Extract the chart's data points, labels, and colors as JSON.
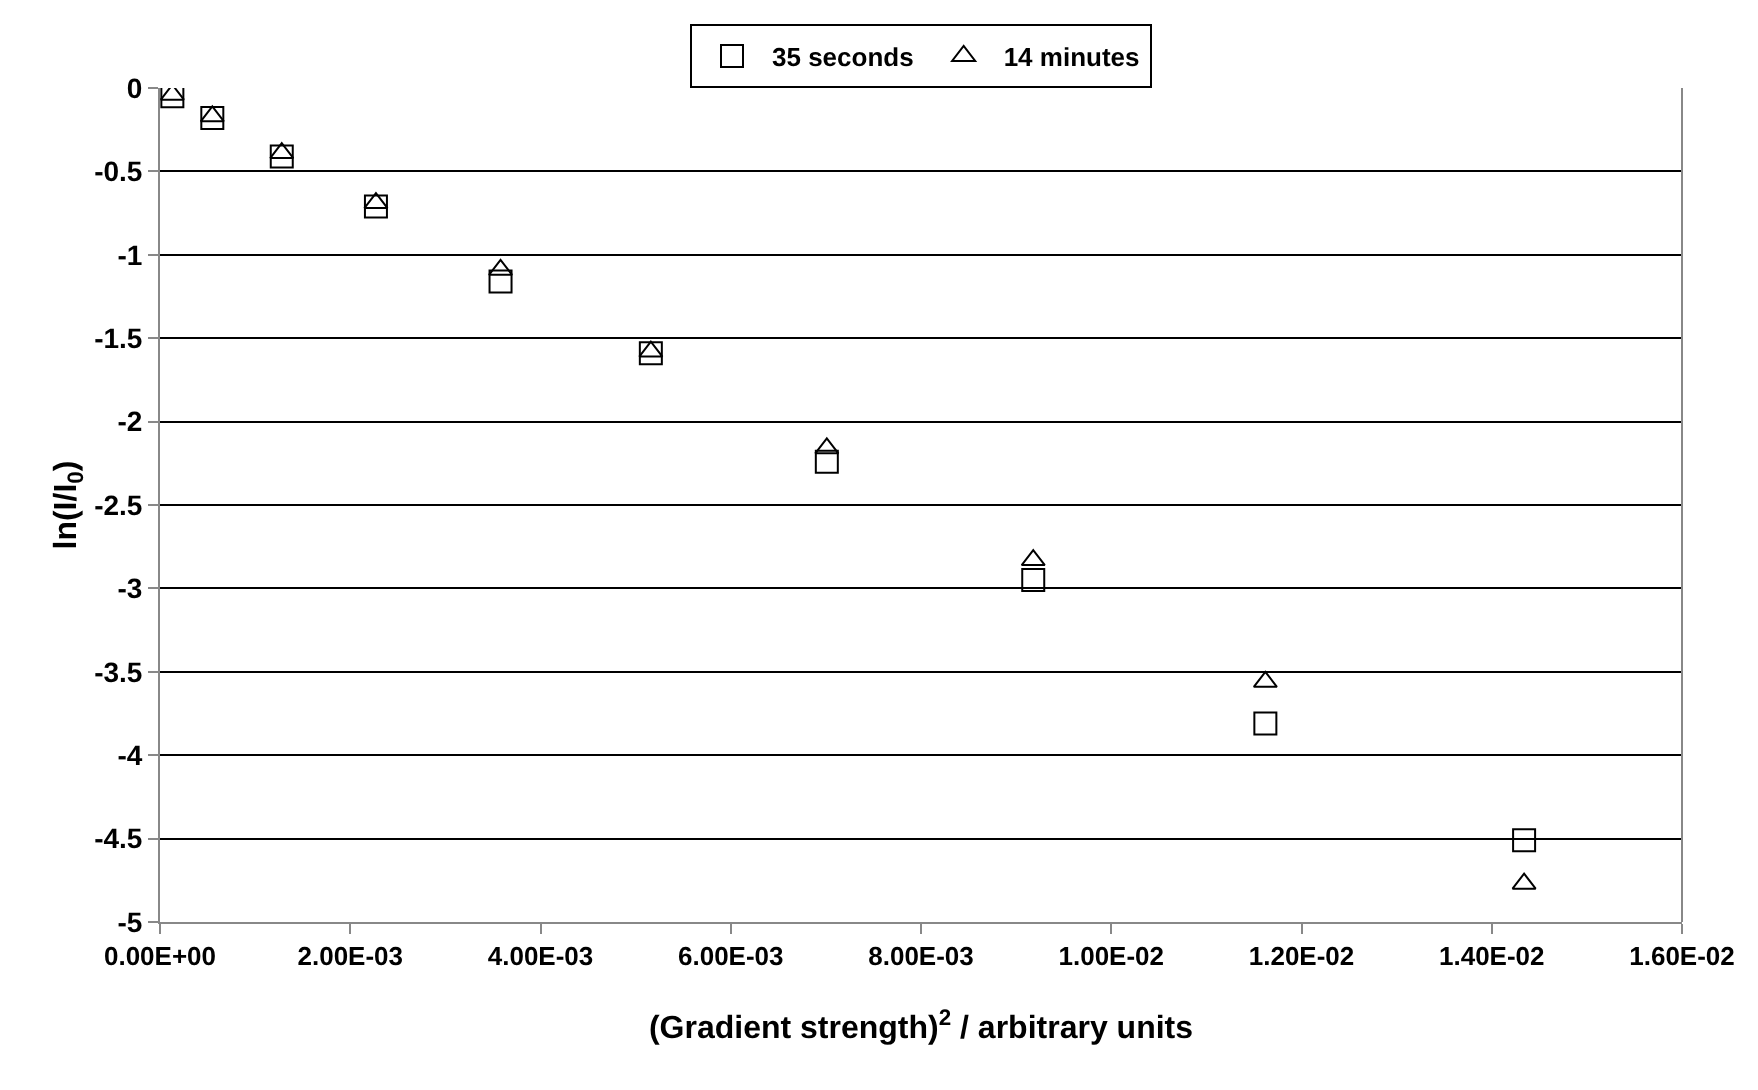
{
  "chart_data": {
    "type": "scatter",
    "xlabel": "(Gradient strength)$^{2}$ / arbitrary units",
    "ylabel": "ln(I/I$_{0}$)",
    "x": [
      0.00013,
      0.00055,
      0.00128,
      0.00227,
      0.00358,
      0.00516,
      0.00701,
      0.00918,
      0.01162,
      0.01434
    ],
    "series": [
      {
        "name": "35 seconds",
        "color": "#000000",
        "marker": "square",
        "values": [
          -0.05,
          -0.18,
          -0.41,
          -0.71,
          -1.16,
          -1.59,
          -2.24,
          -2.95,
          -3.81,
          -4.51
        ]
      },
      {
        "name": "14 minutes",
        "color": "#000000",
        "marker": "triangle",
        "values": [
          -0.04,
          -0.17,
          -0.39,
          -0.69,
          -1.09,
          -1.58,
          -2.16,
          -2.83,
          -3.56,
          -4.77
        ]
      }
    ],
    "xlim": [
      0,
      0.016
    ],
    "xticks": [
      {
        "value": 0,
        "label": "0.00E+00"
      },
      {
        "value": 0.002,
        "label": "2.00E-03"
      },
      {
        "value": 0.004,
        "label": "4.00E-03"
      },
      {
        "value": 0.006,
        "label": "6.00E-03"
      },
      {
        "value": 0.008,
        "label": "8.00E-03"
      },
      {
        "value": 0.01,
        "label": "1.00E-02"
      },
      {
        "value": 0.012,
        "label": "1.20E-02"
      },
      {
        "value": 0.014,
        "label": "1.40E-02"
      },
      {
        "value": 0.016,
        "label": "1.60E-02"
      }
    ],
    "ylim": [
      -5,
      0
    ],
    "yticks": [
      0,
      -0.5,
      -1,
      -1.5,
      -2,
      -2.5,
      -3,
      -3.5,
      -4,
      -4.5,
      -5
    ],
    "grid": "y",
    "legend": "top"
  }
}
